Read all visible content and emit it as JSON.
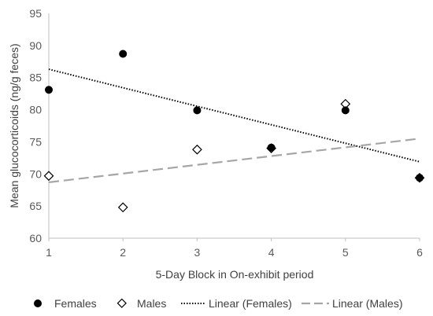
{
  "chart_data": {
    "type": "scatter",
    "title": "",
    "xlabel": "5-Day Block in On-exhibit period",
    "ylabel": "Mean glucocorticoids (ng/g feces)",
    "xlim": [
      1,
      6
    ],
    "ylim": [
      60,
      95
    ],
    "xticks": [
      1,
      2,
      3,
      4,
      5,
      6
    ],
    "yticks": [
      60,
      65,
      70,
      75,
      80,
      85,
      90,
      95
    ],
    "grid": false,
    "legend_position": "bottom",
    "series": [
      {
        "name": "Females",
        "marker": "filled-circle",
        "color": "#000000",
        "x": [
          1,
          2,
          3,
          4,
          5,
          6
        ],
        "y": [
          83.1,
          88.7,
          79.9,
          74.1,
          79.9,
          69.4
        ]
      },
      {
        "name": "Males",
        "marker": "open-diamond",
        "color": "#000000",
        "x": [
          1,
          2,
          3,
          4,
          5,
          6
        ],
        "y": [
          69.7,
          64.8,
          73.8,
          74.0,
          80.9,
          69.4
        ]
      }
    ],
    "trendlines": [
      {
        "name": "Linear (Females)",
        "style": "dotted",
        "color": "#000000",
        "y_at_xmin": 86.3,
        "y_at_xmax": 71.9
      },
      {
        "name": "Linear (Males)",
        "style": "dashed",
        "color": "#a6a6a6",
        "y_at_xmin": 68.7,
        "y_at_xmax": 75.5
      }
    ]
  }
}
